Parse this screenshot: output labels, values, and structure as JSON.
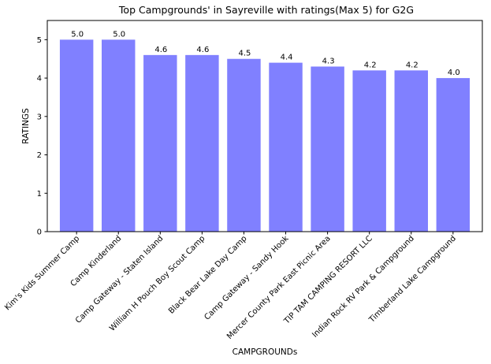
{
  "chart_data": {
    "type": "bar",
    "title": "Top Campgrounds' in Sayreville with ratings(Max 5) for G2G",
    "xlabel": "CAMPGROUNDs",
    "ylabel": "RATINGS",
    "categories": [
      "Kim's Kids Summer Camp",
      "Camp Kinderland",
      "Camp Gateway - Staten Island",
      "William H Pouch Boy Scout Camp",
      "Black Bear Lake Day Camp",
      "Camp Gateway - Sandy Hook",
      "Mercer County Park East Picnic Area",
      "TIP TAM CAMPING RESORT LLC",
      "Indian Rock RV Park & Campground",
      "Timberland Lake Campground"
    ],
    "values": [
      5.0,
      5.0,
      4.6,
      4.6,
      4.5,
      4.4,
      4.3,
      4.2,
      4.2,
      4.0
    ],
    "data_labels": [
      "5.0",
      "5.0",
      "4.6",
      "4.6",
      "4.5",
      "4.4",
      "4.3",
      "4.2",
      "4.2",
      "4.0"
    ],
    "ylim": [
      0,
      5.5
    ],
    "yticks": [
      0,
      1,
      2,
      3,
      4,
      5
    ],
    "grid": false,
    "bar_color": "#8080ff"
  }
}
